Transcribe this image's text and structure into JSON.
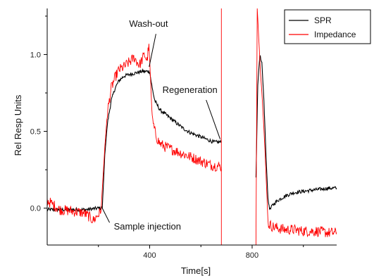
{
  "chart_data": {
    "type": "line",
    "xlabel": "Time[s]",
    "ylabel": "Rel Resp Units",
    "xlim": [
      0,
      1130
    ],
    "ylim": [
      -0.24,
      1.3
    ],
    "x_ticks": [
      400,
      800
    ],
    "y_ticks": [
      0.0,
      0.5,
      1.0
    ],
    "x_tick_labels": [
      "400",
      "800"
    ],
    "y_tick_labels": [
      "0.0",
      "0.5",
      "1.0"
    ],
    "grid": false,
    "legend_position": "top-right",
    "series": [
      {
        "name": "SPR",
        "color": "#000000",
        "segments": [
          {
            "x": [
              0,
              50,
              100,
              150,
              200,
              215,
              225,
              235,
              250,
              265,
              280,
              300,
              320,
              345,
              370,
              395,
              400,
              410,
              420,
              440,
              470,
              500,
              530,
              560,
              590,
              620,
              650,
              680
            ],
            "y": [
              -0.01,
              -0.01,
              -0.01,
              -0.01,
              0.0,
              0.0,
              0.35,
              0.55,
              0.7,
              0.78,
              0.83,
              0.86,
              0.87,
              0.88,
              0.89,
              0.89,
              0.89,
              0.78,
              0.7,
              0.64,
              0.6,
              0.56,
              0.52,
              0.49,
              0.47,
              0.45,
              0.43,
              0.43
            ]
          },
          {
            "x": [
              815,
              822,
              830,
              838,
              846,
              854,
              862,
              870,
              880,
              900,
              930,
              960,
              1000,
              1050,
              1100,
              1130
            ],
            "y": [
              0.2,
              0.8,
              1.0,
              0.95,
              0.7,
              0.35,
              0.05,
              -0.01,
              0.02,
              0.05,
              0.08,
              0.1,
              0.11,
              0.12,
              0.13,
              0.13
            ]
          }
        ]
      },
      {
        "name": "Impedance",
        "color": "#ff0000",
        "segments": [
          {
            "x": [
              0,
              50,
              100,
              140,
              160,
              180,
              200,
              210,
              225,
              235,
              250,
              265,
              280,
              300,
              320,
              340,
              360,
              380,
              390,
              397,
              405,
              410,
              420,
              430,
              440,
              460,
              490,
              520,
              550,
              580,
              610,
              640,
              680
            ],
            "y": [
              0.05,
              -0.01,
              -0.02,
              -0.03,
              -0.05,
              -0.08,
              -0.04,
              -0.02,
              0.4,
              0.62,
              0.78,
              0.85,
              0.9,
              0.92,
              0.95,
              0.98,
              0.93,
              1.0,
              0.96,
              1.07,
              0.78,
              0.58,
              0.5,
              0.45,
              0.42,
              0.4,
              0.38,
              0.36,
              0.34,
              0.32,
              0.3,
              0.28,
              0.27
            ]
          },
          {
            "x": [
              680,
              680
            ],
            "y": [
              -0.24,
              1.3
            ]
          },
          {
            "x": [
              815,
              820,
              826,
              832,
              840,
              848,
              856,
              862,
              870,
              880,
              900,
              930,
              960,
              1000,
              1050,
              1100,
              1130
            ],
            "y": [
              -0.24,
              1.3,
              1.1,
              0.9,
              0.7,
              0.45,
              0.15,
              -0.1,
              -0.11,
              -0.12,
              -0.13,
              -0.14,
              -0.14,
              -0.15,
              -0.15,
              -0.16,
              -0.16
            ]
          }
        ]
      }
    ],
    "annotations": [
      {
        "text": "Wash-out",
        "x": 320,
        "y": 1.18,
        "arrow_to": [
          398,
          0.92
        ]
      },
      {
        "text": "Regeneration",
        "x": 450,
        "y": 0.75,
        "arrow_to": [
          675,
          0.45
        ]
      },
      {
        "text": "Sample injection",
        "x": 260,
        "y": -0.14,
        "arrow_to": [
          215,
          0.0
        ]
      }
    ]
  }
}
